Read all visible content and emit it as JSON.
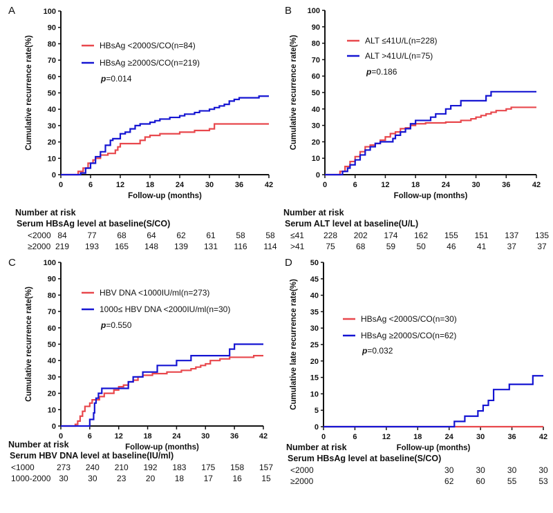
{
  "chart_data": [
    {
      "type": "line",
      "panel_label": "A",
      "ylabel": "Cumulative recurrence rate(%)",
      "xlabel": "Follow-up (months)",
      "xlim": [
        0,
        42
      ],
      "ylim": [
        0,
        100
      ],
      "xticks": [
        0,
        6,
        12,
        18,
        24,
        30,
        36,
        42
      ],
      "yticks": [
        0,
        10,
        20,
        30,
        40,
        50,
        60,
        70,
        80,
        90,
        100
      ],
      "p_label": "p",
      "p_value": "=0.014",
      "series": [
        {
          "name": "HBsAg <2000S/CO(n=84)",
          "color": "#e8474c",
          "steps": [
            [
              0,
              0
            ],
            [
              3.5,
              2
            ],
            [
              4.5,
              4
            ],
            [
              5.5,
              7
            ],
            [
              6.5,
              9
            ],
            [
              7,
              10
            ],
            [
              8,
              12
            ],
            [
              9.5,
              13
            ],
            [
              11,
              15
            ],
            [
              11.5,
              17
            ],
            [
              12,
              19
            ],
            [
              16,
              21
            ],
            [
              17,
              23
            ],
            [
              18,
              24
            ],
            [
              20,
              25
            ],
            [
              24,
              26
            ],
            [
              27,
              27
            ],
            [
              30,
              28
            ],
            [
              31,
              31
            ],
            [
              42,
              31
            ]
          ]
        },
        {
          "name": "HBsAg ≥2000S/CO(n=219)",
          "color": "#1414d2",
          "steps": [
            [
              0,
              0
            ],
            [
              4,
              1
            ],
            [
              5,
              4
            ],
            [
              6,
              7
            ],
            [
              7,
              11
            ],
            [
              8,
              14
            ],
            [
              9,
              18
            ],
            [
              10,
              21
            ],
            [
              10.5,
              22
            ],
            [
              12,
              25
            ],
            [
              13,
              26
            ],
            [
              14,
              28
            ],
            [
              15,
              30
            ],
            [
              16,
              31
            ],
            [
              18,
              32
            ],
            [
              19,
              33
            ],
            [
              20,
              34
            ],
            [
              22,
              35
            ],
            [
              24,
              36
            ],
            [
              25,
              37
            ],
            [
              27,
              38
            ],
            [
              28,
              39
            ],
            [
              30,
              40
            ],
            [
              31,
              41
            ],
            [
              32,
              42
            ],
            [
              33,
              43
            ],
            [
              34,
              45
            ],
            [
              35,
              46
            ],
            [
              36,
              47
            ],
            [
              40,
              48
            ],
            [
              42,
              48
            ]
          ]
        }
      ],
      "risk_table": {
        "title": "Number at risk",
        "group_title": "Serum HBsAg level at baseline(S/CO)",
        "rows": [
          {
            "label": "<2000",
            "values": [
              84,
              77,
              68,
              64,
              62,
              61,
              58,
              58
            ]
          },
          {
            "label": "≥2000",
            "values": [
              219,
              193,
              165,
              148,
              139,
              131,
              116,
              114
            ]
          }
        ]
      }
    },
    {
      "type": "line",
      "panel_label": "B",
      "ylabel": "Cumulative recurrence rate(%)",
      "xlabel": "Follow-up (months)",
      "xlim": [
        0,
        42
      ],
      "ylim": [
        0,
        100
      ],
      "xticks": [
        0,
        6,
        12,
        18,
        24,
        30,
        36,
        42
      ],
      "yticks": [
        0,
        10,
        20,
        30,
        40,
        50,
        60,
        70,
        80,
        90,
        100
      ],
      "p_label": "p",
      "p_value": "=0.186",
      "series": [
        {
          "name": "ALT ≤41U/L(n=228)",
          "color": "#e8474c",
          "steps": [
            [
              0,
              0
            ],
            [
              3,
              2
            ],
            [
              4,
              5
            ],
            [
              5,
              8
            ],
            [
              6,
              11
            ],
            [
              7,
              14
            ],
            [
              8,
              17
            ],
            [
              9,
              18
            ],
            [
              10,
              19
            ],
            [
              11,
              21
            ],
            [
              12,
              23
            ],
            [
              13,
              25
            ],
            [
              14,
              26
            ],
            [
              15,
              28
            ],
            [
              16,
              28.5
            ],
            [
              17,
              30
            ],
            [
              18,
              31
            ],
            [
              20,
              31.5
            ],
            [
              24,
              32
            ],
            [
              27,
              33
            ],
            [
              29,
              34
            ],
            [
              30,
              35
            ],
            [
              31,
              36
            ],
            [
              32,
              37
            ],
            [
              33,
              38
            ],
            [
              34,
              39
            ],
            [
              36,
              40
            ],
            [
              37,
              41
            ],
            [
              42,
              41
            ]
          ]
        },
        {
          "name": "ALT >41U/L(n=75)",
          "color": "#1414d2",
          "steps": [
            [
              0,
              0
            ],
            [
              3.5,
              2
            ],
            [
              4.5,
              4
            ],
            [
              5,
              6
            ],
            [
              6,
              9
            ],
            [
              7,
              12
            ],
            [
              8,
              15
            ],
            [
              9,
              17
            ],
            [
              10,
              19
            ],
            [
              11,
              20
            ],
            [
              13,
              20
            ],
            [
              13.5,
              22
            ],
            [
              14,
              24
            ],
            [
              15,
              26
            ],
            [
              16,
              28
            ],
            [
              17,
              31
            ],
            [
              18,
              33
            ],
            [
              21,
              35
            ],
            [
              22,
              37
            ],
            [
              24,
              40
            ],
            [
              25,
              42
            ],
            [
              27,
              45
            ],
            [
              32,
              48
            ],
            [
              33,
              50.5
            ],
            [
              42,
              50.5
            ]
          ]
        }
      ],
      "risk_table": {
        "title": "Number at risk",
        "group_title": "Serum ALT level at baseline(U/L)",
        "rows": [
          {
            "label": "≤41",
            "values": [
              228,
              202,
              174,
              162,
              155,
              151,
              137,
              135
            ]
          },
          {
            "label": ">41",
            "values": [
              75,
              68,
              59,
              50,
              46,
              41,
              37,
              37
            ]
          }
        ]
      }
    },
    {
      "type": "line",
      "panel_label": "C",
      "ylabel": "Cumulative recurrence rate(%)",
      "xlabel": "Follow-up (months)",
      "xlim": [
        0,
        42
      ],
      "ylim": [
        0,
        100
      ],
      "xticks": [
        0,
        6,
        12,
        18,
        24,
        30,
        36,
        42
      ],
      "yticks": [
        0,
        10,
        20,
        30,
        40,
        50,
        60,
        70,
        80,
        90,
        100
      ],
      "p_label": "p",
      "p_value": "=0.550",
      "series": [
        {
          "name": "HBV DNA <1000IU/ml(n=273)",
          "color": "#e8474c",
          "steps": [
            [
              0,
              0
            ],
            [
              3,
              1
            ],
            [
              3.5,
              3
            ],
            [
              4,
              6
            ],
            [
              4.5,
              9
            ],
            [
              5,
              12
            ],
            [
              6,
              14
            ],
            [
              6.5,
              16
            ],
            [
              8,
              18
            ],
            [
              9,
              20
            ],
            [
              11,
              22
            ],
            [
              12,
              24
            ],
            [
              13,
              25
            ],
            [
              14,
              27
            ],
            [
              15,
              28
            ],
            [
              16,
              30
            ],
            [
              17,
              31
            ],
            [
              19,
              32
            ],
            [
              22,
              33
            ],
            [
              25,
              34
            ],
            [
              27,
              35
            ],
            [
              28,
              36
            ],
            [
              29,
              37
            ],
            [
              30,
              38
            ],
            [
              31,
              40
            ],
            [
              33,
              41
            ],
            [
              35,
              42
            ],
            [
              40,
              43
            ],
            [
              42,
              43
            ]
          ]
        },
        {
          "name": "1000≤ HBV DNA <2000IU/ml(n=30)",
          "color": "#1414d2",
          "steps": [
            [
              0,
              0
            ],
            [
              6,
              4
            ],
            [
              6.8,
              8
            ],
            [
              7,
              14
            ],
            [
              7.3,
              17
            ],
            [
              7.8,
              20
            ],
            [
              8.5,
              23
            ],
            [
              14,
              27
            ],
            [
              15,
              30
            ],
            [
              17,
              33
            ],
            [
              20,
              37
            ],
            [
              24,
              40
            ],
            [
              27,
              43
            ],
            [
              35,
              47
            ],
            [
              36,
              50
            ],
            [
              42,
              50
            ]
          ]
        }
      ],
      "risk_table": {
        "title": "Number at risk",
        "group_title": "Serum HBV DNA level at baseline(IU/ml)",
        "rows": [
          {
            "label": "<1000",
            "values": [
              273,
              240,
              210,
              192,
              183,
              175,
              158,
              157
            ]
          },
          {
            "label": "1000-2000",
            "values": [
              30,
              30,
              23,
              20,
              18,
              17,
              16,
              15
            ]
          }
        ]
      }
    },
    {
      "type": "line",
      "panel_label": "D",
      "ylabel": "Cumulative late recurrence rate(%)",
      "xlabel": "Follow-up (months)",
      "xlim": [
        0,
        42
      ],
      "ylim": [
        0,
        50
      ],
      "xticks": [
        0,
        6,
        12,
        18,
        24,
        30,
        36,
        42
      ],
      "yticks": [
        0,
        5,
        10,
        15,
        20,
        25,
        30,
        35,
        40,
        45,
        50
      ],
      "p_label": "p",
      "p_value": "=0.032",
      "series": [
        {
          "name": "HBsAg <2000S/CO(n=30)",
          "color": "#e8474c",
          "steps": [
            [
              0,
              0
            ],
            [
              42,
              0
            ]
          ]
        },
        {
          "name": "HBsAg ≥2000S/CO(n=62)",
          "color": "#1414d2",
          "steps": [
            [
              0,
              0
            ],
            [
              25,
              1.6
            ],
            [
              27,
              3.2
            ],
            [
              29.5,
              4.8
            ],
            [
              30.5,
              6.5
            ],
            [
              31.5,
              8
            ],
            [
              32.5,
              11.3
            ],
            [
              35.5,
              12.9
            ],
            [
              40,
              15.5
            ],
            [
              42,
              15.5
            ]
          ]
        }
      ],
      "risk_table": {
        "title": "Number at risk",
        "group_title": "Serum HBsAg level at baseline(S/CO)",
        "start_column": 4,
        "rows": [
          {
            "label": "<2000",
            "values": [
              30,
              30,
              30,
              30
            ]
          },
          {
            "label": "≥2000",
            "values": [
              62,
              60,
              55,
              53
            ]
          }
        ]
      }
    }
  ]
}
